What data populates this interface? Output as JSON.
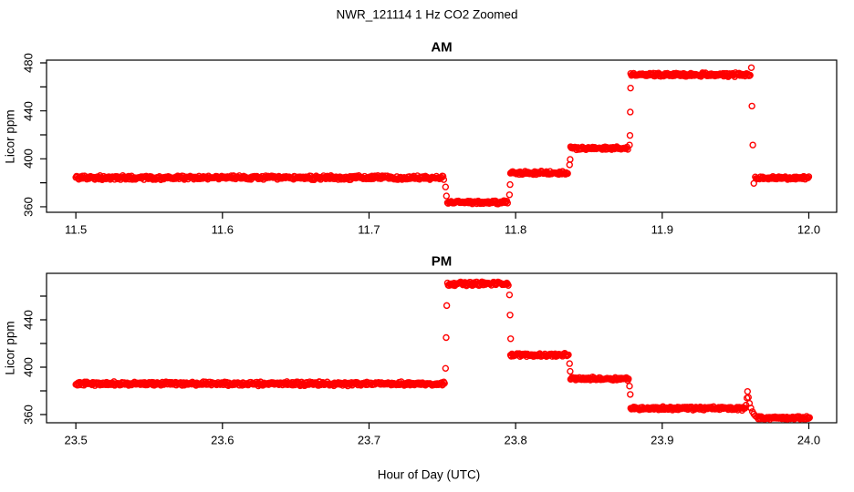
{
  "title": "NWR_121114  1 Hz CO2 Zoomed",
  "xlabel": "Hour of Day (UTC)",
  "marker_color": "#FF0000",
  "axis_color": "#000000",
  "chart_data": [
    {
      "type": "scatter",
      "title": "AM",
      "ylabel": "Licor ppm",
      "marker": {
        "shape": "open-circle",
        "color": "#FF0000",
        "radius": 3.0
      },
      "xlim": [
        11.48,
        12.019
      ],
      "ylim": [
        355.4,
        482.3
      ],
      "xticks": [
        11.5,
        11.6,
        11.7,
        11.8,
        11.9,
        12.0
      ],
      "xtick_labels": [
        "11.5",
        "11.6",
        "11.7",
        "11.8",
        "11.9",
        "12.0"
      ],
      "yticks_major": [
        360,
        400,
        440,
        480
      ],
      "ytick_labels": [
        "360",
        "400",
        "440",
        "480"
      ],
      "yticks_minor": [
        380,
        420,
        460
      ],
      "sample_interval_hours": 0.0005,
      "segments": [
        {
          "x0": 11.5,
          "x1": 11.7515,
          "ppm": 384.3,
          "noise": 1.2
        },
        {
          "x0": 11.7535,
          "x1": 11.795,
          "ppm": 363.8,
          "noise": 1.1
        },
        {
          "x0": 11.7965,
          "x1": 11.836,
          "ppm": 388.3,
          "noise": 1.0
        },
        {
          "x0": 11.8375,
          "x1": 11.877,
          "ppm": 408.8,
          "noise": 1.0
        },
        {
          "x0": 11.8785,
          "x1": 11.9605,
          "ppm": 470.2,
          "noise": 1.2
        },
        {
          "x0": 11.9635,
          "x1": 12.0005,
          "ppm": 384.0,
          "noise": 1.0
        }
      ],
      "transition_points": [
        [
          11.7522,
          376.5
        ],
        [
          11.7528,
          369.0
        ],
        [
          11.7958,
          370.0
        ],
        [
          11.7962,
          378.5
        ],
        [
          11.8368,
          395.0
        ],
        [
          11.8372,
          399.5
        ],
        [
          11.8777,
          411.5
        ],
        [
          11.878,
          419.5
        ],
        [
          11.8782,
          439.0
        ],
        [
          11.8784,
          459.0
        ],
        [
          11.9608,
          476.0
        ],
        [
          11.9612,
          444.0
        ],
        [
          11.9618,
          411.5
        ],
        [
          11.9625,
          379.5
        ]
      ]
    },
    {
      "type": "scatter",
      "title": "PM",
      "ylabel": "Licor ppm",
      "marker": {
        "shape": "open-circle",
        "color": "#FF0000",
        "radius": 3.0
      },
      "xlim": [
        23.48,
        24.019
      ],
      "ylim": [
        353.1,
        479.2
      ],
      "xticks": [
        23.5,
        23.6,
        23.7,
        23.8,
        23.9,
        24.0
      ],
      "xtick_labels": [
        "23.5",
        "23.6",
        "23.7",
        "23.8",
        "23.9",
        "24.0"
      ],
      "yticks_major": [
        360,
        400,
        440
      ],
      "ytick_labels": [
        "360",
        "400",
        "440"
      ],
      "yticks_minor": [
        380,
        420,
        460
      ],
      "sample_interval_hours": 0.0005,
      "segments": [
        {
          "x0": 23.5,
          "x1": 23.7515,
          "ppm": 386.0,
          "noise": 1.2
        },
        {
          "x0": 23.7535,
          "x1": 23.795,
          "ppm": 470.5,
          "noise": 1.2
        },
        {
          "x0": 23.7965,
          "x1": 23.836,
          "ppm": 410.3,
          "noise": 1.0
        },
        {
          "x0": 23.8375,
          "x1": 23.877,
          "ppm": 390.3,
          "noise": 1.0
        },
        {
          "x0": 23.8785,
          "x1": 23.9565,
          "ppm": 365.3,
          "noise": 1.1
        },
        {
          "x0": 23.9655,
          "x1": 24.0005,
          "ppm": 357.2,
          "noise": 0.9
        }
      ],
      "transition_points": [
        [
          23.7522,
          399.0
        ],
        [
          23.7526,
          425.0
        ],
        [
          23.753,
          452.0
        ],
        [
          23.7958,
          461.0
        ],
        [
          23.7962,
          444.0
        ],
        [
          23.7966,
          424.0
        ],
        [
          23.8368,
          403.0
        ],
        [
          23.8372,
          396.5
        ],
        [
          23.8777,
          384.0
        ],
        [
          23.8782,
          377.0
        ],
        [
          23.9572,
          368.0
        ],
        [
          23.9578,
          374.0
        ],
        [
          23.9582,
          379.5
        ],
        [
          23.9588,
          374.5
        ],
        [
          23.9595,
          369.5
        ],
        [
          23.9605,
          365.5
        ],
        [
          23.9615,
          362.5
        ],
        [
          23.9625,
          360.5
        ],
        [
          23.9635,
          359.0
        ],
        [
          23.9645,
          358.0
        ]
      ]
    }
  ]
}
